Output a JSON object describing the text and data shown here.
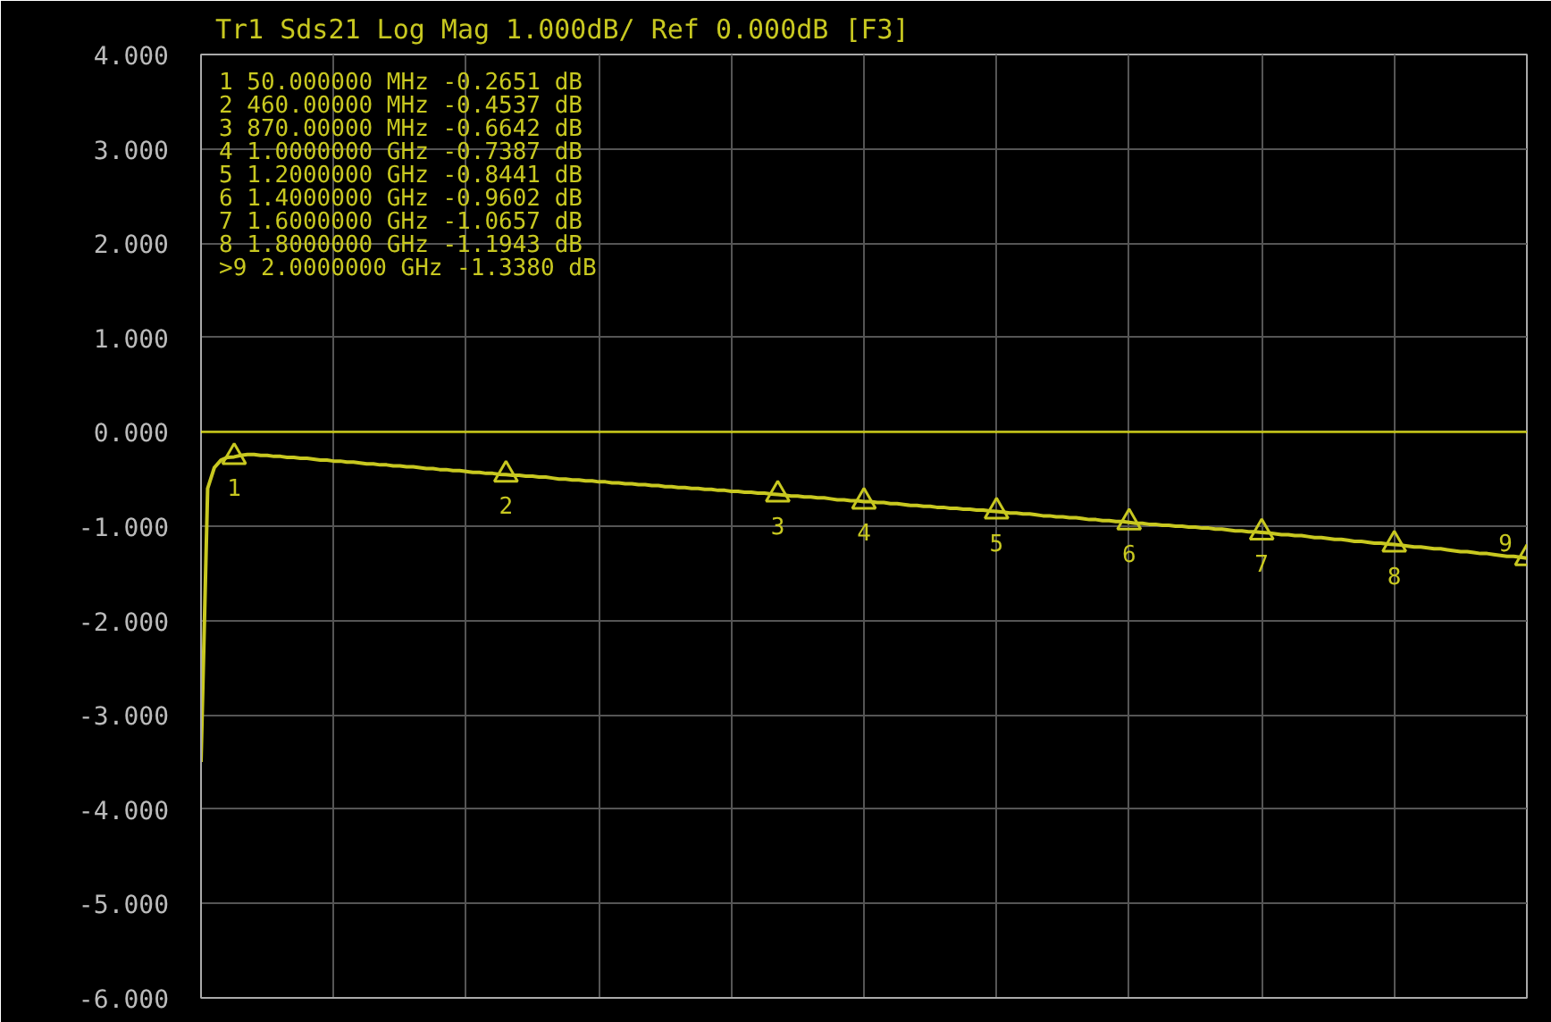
{
  "chart_data": {
    "type": "line",
    "title": "Tr1 Sds21 Log Mag 1.000dB/ Ref 0.000dB [F3]",
    "categories": [
      null,
      null,
      null,
      null,
      null,
      null,
      null,
      null,
      null,
      null,
      null,
      null,
      null,
      null,
      null,
      null,
      null,
      null,
      null,
      null,
      null,
      null,
      null,
      null,
      null,
      null,
      null,
      null,
      null,
      null,
      null,
      null,
      null,
      null,
      null,
      null,
      null,
      null,
      null,
      null,
      null,
      null,
      null,
      null,
      null,
      null,
      null,
      null,
      null,
      null,
      null,
      null,
      null,
      null,
      null,
      null,
      null,
      null,
      null,
      null,
      null,
      null,
      null,
      null,
      null,
      null,
      null,
      null,
      null,
      null,
      null,
      null,
      null,
      null,
      null,
      null,
      null,
      null,
      null,
      null,
      null,
      null,
      null,
      null,
      null,
      null,
      null,
      null,
      null,
      null,
      null,
      null,
      null,
      null,
      null,
      null,
      null,
      null,
      null,
      null,
      null,
      null,
      null,
      null,
      null,
      null,
      null,
      null,
      null,
      null,
      null,
      null,
      null,
      null,
      null,
      null,
      null,
      null,
      null,
      null,
      null,
      null,
      null,
      null,
      null,
      null,
      null,
      null,
      null,
      null,
      null,
      null,
      null,
      null,
      null,
      null,
      null,
      null,
      null,
      null,
      null,
      null,
      null,
      null,
      null,
      null,
      null,
      null,
      null,
      null,
      null,
      null,
      null,
      null,
      null,
      null,
      null,
      null,
      null,
      null,
      null,
      null,
      null,
      null,
      null,
      null,
      null,
      null,
      null,
      null,
      null,
      null,
      null,
      null,
      null,
      null,
      null,
      null,
      null,
      null,
      null,
      null,
      null,
      null,
      null,
      null,
      null,
      null,
      null,
      null,
      null,
      null,
      null,
      null,
      null,
      null,
      null,
      null,
      null,
      null,
      null
    ],
    "ylim": [
      -6,
      4
    ],
    "yticks": [
      {
        "value": -6,
        "label": "-6.000"
      },
      {
        "value": -5,
        "label": "-5.000"
      },
      {
        "value": -4,
        "label": "-4.000"
      },
      {
        "value": -3,
        "label": "-3.000"
      },
      {
        "value": -2,
        "label": "-2.000"
      },
      {
        "value": -1,
        "label": "-1.000"
      },
      {
        "value": 0,
        "label": "0.000"
      },
      {
        "value": 1,
        "label": "1.000"
      },
      {
        "value": 2,
        "label": "2.000"
      },
      {
        "value": 3,
        "label": "3.000"
      },
      {
        "value": 4,
        "label": "4.000"
      }
    ],
    "tick_labels": "y",
    "grid": true,
    "series": [
      {
        "color": "#c8c820",
        "values": [
          -3.5,
          -0.6,
          -0.38,
          -0.3,
          -0.27,
          -0.2651,
          -0.25,
          -0.24,
          -0.24,
          -0.25,
          -0.25,
          -0.26,
          -0.26,
          -0.27,
          -0.27,
          -0.28,
          -0.28,
          -0.29,
          -0.3,
          -0.3,
          -0.31,
          -0.31,
          -0.32,
          -0.32,
          -0.33,
          -0.34,
          -0.34,
          -0.35,
          -0.35,
          -0.36,
          -0.36,
          -0.37,
          -0.37,
          -0.38,
          -0.39,
          -0.39,
          -0.4,
          -0.4,
          -0.41,
          -0.41,
          -0.42,
          -0.43,
          -0.43,
          -0.44,
          -0.44,
          -0.45,
          -0.4537,
          -0.46,
          -0.46,
          -0.47,
          -0.47,
          -0.48,
          -0.48,
          -0.49,
          -0.5,
          -0.5,
          -0.51,
          -0.51,
          -0.52,
          -0.52,
          -0.53,
          -0.53,
          -0.54,
          -0.54,
          -0.55,
          -0.55,
          -0.56,
          -0.56,
          -0.57,
          -0.57,
          -0.58,
          -0.58,
          -0.59,
          -0.59,
          -0.6,
          -0.6,
          -0.61,
          -0.61,
          -0.62,
          -0.62,
          -0.63,
          -0.63,
          -0.64,
          -0.64,
          -0.65,
          -0.65,
          -0.66,
          -0.6642,
          -0.67,
          -0.68,
          -0.68,
          -0.69,
          -0.69,
          -0.7,
          -0.7,
          -0.71,
          -0.72,
          -0.72,
          -0.73,
          -0.73,
          -0.7387,
          -0.74,
          -0.75,
          -0.75,
          -0.76,
          -0.76,
          -0.77,
          -0.78,
          -0.78,
          -0.79,
          -0.79,
          -0.8,
          -0.8,
          -0.81,
          -0.81,
          -0.82,
          -0.82,
          -0.83,
          -0.83,
          -0.84,
          -0.8441,
          -0.85,
          -0.86,
          -0.86,
          -0.87,
          -0.87,
          -0.88,
          -0.89,
          -0.89,
          -0.9,
          -0.9,
          -0.91,
          -0.91,
          -0.92,
          -0.93,
          -0.93,
          -0.94,
          -0.94,
          -0.95,
          -0.95,
          -0.9602,
          -0.97,
          -0.97,
          -0.98,
          -0.98,
          -0.99,
          -0.99,
          -1.0,
          -1.0,
          -1.01,
          -1.01,
          -1.02,
          -1.02,
          -1.03,
          -1.03,
          -1.04,
          -1.05,
          -1.05,
          -1.06,
          -1.06,
          -1.0657,
          -1.07,
          -1.08,
          -1.09,
          -1.09,
          -1.1,
          -1.1,
          -1.11,
          -1.12,
          -1.12,
          -1.13,
          -1.14,
          -1.14,
          -1.15,
          -1.16,
          -1.16,
          -1.17,
          -1.18,
          -1.18,
          -1.19,
          -1.1943,
          -1.2,
          -1.21,
          -1.22,
          -1.22,
          -1.23,
          -1.24,
          -1.24,
          -1.25,
          -1.26,
          -1.27,
          -1.27,
          -1.28,
          -1.29,
          -1.29,
          -1.3,
          -1.31,
          -1.32,
          -1.32,
          -1.33,
          -1.338
        ]
      },
      {
        "type": "scatter",
        "marker": "triangle",
        "color": "#c8c820",
        "values": [
          null,
          null,
          null,
          null,
          null,
          -0.2651,
          null,
          null,
          null,
          null,
          null,
          null,
          null,
          null,
          null,
          null,
          null,
          null,
          null,
          null,
          null,
          null,
          null,
          null,
          null,
          null,
          null,
          null,
          null,
          null,
          null,
          null,
          null,
          null,
          null,
          null,
          null,
          null,
          null,
          null,
          null,
          null,
          null,
          null,
          null,
          null,
          -0.4537,
          null,
          null,
          null,
          null,
          null,
          null,
          null,
          null,
          null,
          null,
          null,
          null,
          null,
          null,
          null,
          null,
          null,
          null,
          null,
          null,
          null,
          null,
          null,
          null,
          null,
          null,
          null,
          null,
          null,
          null,
          null,
          null,
          null,
          null,
          null,
          null,
          null,
          null,
          null,
          null,
          -0.6642,
          null,
          null,
          null,
          null,
          null,
          null,
          null,
          null,
          null,
          null,
          null,
          null,
          -0.7387,
          null,
          null,
          null,
          null,
          null,
          null,
          null,
          null,
          null,
          null,
          null,
          null,
          null,
          null,
          null,
          null,
          null,
          null,
          null,
          -0.8441,
          null,
          null,
          null,
          null,
          null,
          null,
          null,
          null,
          null,
          null,
          null,
          null,
          null,
          null,
          null,
          null,
          null,
          null,
          null,
          -0.9602,
          null,
          null,
          null,
          null,
          null,
          null,
          null,
          null,
          null,
          null,
          null,
          null,
          null,
          null,
          null,
          null,
          null,
          null,
          null,
          -1.0657,
          null,
          null,
          null,
          null,
          null,
          null,
          null,
          null,
          null,
          null,
          null,
          null,
          null,
          null,
          null,
          null,
          null,
          null,
          null,
          -1.1943,
          null,
          null,
          null,
          null,
          null,
          null,
          null,
          null,
          null,
          null,
          null,
          null,
          null,
          null,
          null,
          null,
          null,
          null,
          null,
          -1.338
        ]
      }
    ],
    "ref_lines": [
      {
        "axis": "y",
        "value": 0,
        "color": "#ffff00"
      }
    ],
    "annotations": [
      "1   50.000000 MHz -0.2651 dB",
      "2   460.00000 MHz -0.4537 dB",
      "3   870.00000 MHz -0.6642 dB",
      "4   1.0000000 GHz -0.7387 dB",
      "5   1.2000000 GHz -0.8441 dB",
      "6   1.4000000 GHz -0.9602 dB",
      "7   1.6000000 GHz -1.0657 dB",
      "8   1.8000000 GHz -1.1943 dB",
      ">9  2.0000000 GHz -1.3380 dB",
      "1",
      "2",
      "3",
      "4",
      "5",
      "6",
      "7",
      "8",
      "9"
    ]
  }
}
